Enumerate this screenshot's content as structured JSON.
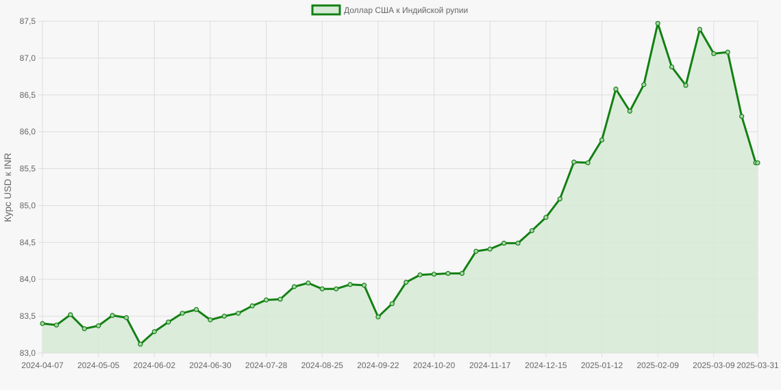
{
  "chart_data": {
    "type": "line",
    "title": "",
    "ylabel": "Курс USD к INR",
    "xlabel": "",
    "ylim": [
      83.0,
      87.5
    ],
    "y_ticks": [
      "83,0",
      "83,5",
      "84,0",
      "84,5",
      "85,0",
      "85,5",
      "86,0",
      "86,5",
      "87,0",
      "87,5"
    ],
    "y_tick_values": [
      83.0,
      83.5,
      84.0,
      84.5,
      85.0,
      85.5,
      86.0,
      86.5,
      87.0,
      87.5
    ],
    "x_ticks": [
      "2024-04-07",
      "2024-05-05",
      "2024-06-02",
      "2024-06-30",
      "2024-07-28",
      "2024-08-25",
      "2024-09-22",
      "2024-10-20",
      "2024-11-17",
      "2024-12-15",
      "2025-01-12",
      "2025-02-09",
      "2025-03-09",
      "2025-03-31"
    ],
    "grid": true,
    "legend_position": "top-center",
    "fill": true,
    "colors": {
      "line": "#128012",
      "fill": "#d6ead6",
      "grid": "#dddddd",
      "background": "#f7f7f7"
    },
    "series": [
      {
        "name": "Доллар США к Индийской рупии",
        "x": [
          "2024-04-07",
          "2024-04-14",
          "2024-04-21",
          "2024-04-28",
          "2024-05-05",
          "2024-05-12",
          "2024-05-19",
          "2024-05-26",
          "2024-06-02",
          "2024-06-09",
          "2024-06-16",
          "2024-06-23",
          "2024-06-30",
          "2024-07-07",
          "2024-07-14",
          "2024-07-21",
          "2024-07-28",
          "2024-08-04",
          "2024-08-11",
          "2024-08-18",
          "2024-08-25",
          "2024-09-01",
          "2024-09-08",
          "2024-09-15",
          "2024-09-22",
          "2024-09-29",
          "2024-10-06",
          "2024-10-13",
          "2024-10-20",
          "2024-10-27",
          "2024-11-03",
          "2024-11-10",
          "2024-11-17",
          "2024-11-24",
          "2024-12-01",
          "2024-12-08",
          "2024-12-15",
          "2024-12-22",
          "2024-12-29",
          "2025-01-05",
          "2025-01-12",
          "2025-01-19",
          "2025-01-26",
          "2025-02-02",
          "2025-02-09",
          "2025-02-16",
          "2025-02-23",
          "2025-03-02",
          "2025-03-09",
          "2025-03-16",
          "2025-03-23",
          "2025-03-30",
          "2025-03-31"
        ],
        "values": [
          83.4,
          83.38,
          83.52,
          83.33,
          83.37,
          83.51,
          83.48,
          83.12,
          83.29,
          83.42,
          83.54,
          83.59,
          83.45,
          83.5,
          83.54,
          83.64,
          83.72,
          83.73,
          83.9,
          83.95,
          83.87,
          83.87,
          83.93,
          83.92,
          83.49,
          83.67,
          83.96,
          84.06,
          84.07,
          84.08,
          84.08,
          84.38,
          84.41,
          84.49,
          84.49,
          84.66,
          84.84,
          85.09,
          85.59,
          85.58,
          85.89,
          86.58,
          86.28,
          86.64,
          87.47,
          86.88,
          86.63,
          87.39,
          87.06,
          87.08,
          86.21,
          85.58,
          85.58
        ]
      }
    ]
  }
}
